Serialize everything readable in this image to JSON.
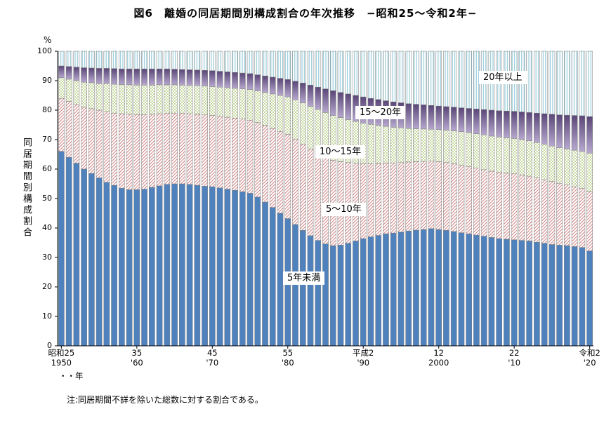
{
  "title": "図6　離婚の同居期間別構成割合の年次推移　−昭和25～令和2年−",
  "note": "注:同居期間不詳を除いた総数に対する割合である。",
  "y_axis": {
    "title": "同居期間別構成割合",
    "unit": "%",
    "min": 0,
    "max": 100,
    "step": 10
  },
  "x_axis": {
    "unit_label": "・・年",
    "ticks": [
      {
        "index": 0,
        "era": "昭和25",
        "west": "1950"
      },
      {
        "index": 10,
        "era": "35",
        "west": "'60"
      },
      {
        "index": 20,
        "era": "45",
        "west": "'70"
      },
      {
        "index": 30,
        "era": "55",
        "west": "'80"
      },
      {
        "index": 40,
        "era": "平成2",
        "west": "'90"
      },
      {
        "index": 50,
        "era": "12",
        "west": "2000"
      },
      {
        "index": 60,
        "era": "22",
        "west": "'10"
      },
      {
        "index": 70,
        "era": "令和2",
        "west": "'20"
      }
    ]
  },
  "chart_data": {
    "type": "bar",
    "stacked": true,
    "title": "離婚の同居期間別構成割合の年次推移",
    "ylabel": "同居期間別構成割合",
    "ylim": [
      0,
      100
    ],
    "legend": "inline-labels",
    "years": [
      1950,
      1951,
      1952,
      1953,
      1954,
      1955,
      1956,
      1957,
      1958,
      1959,
      1960,
      1961,
      1962,
      1963,
      1964,
      1965,
      1966,
      1967,
      1968,
      1969,
      1970,
      1971,
      1972,
      1973,
      1974,
      1975,
      1976,
      1977,
      1978,
      1979,
      1980,
      1981,
      1982,
      1983,
      1984,
      1985,
      1986,
      1987,
      1988,
      1989,
      1990,
      1991,
      1992,
      1993,
      1994,
      1995,
      1996,
      1997,
      1998,
      1999,
      2000,
      2001,
      2002,
      2003,
      2004,
      2005,
      2006,
      2007,
      2008,
      2009,
      2010,
      2011,
      2012,
      2013,
      2014,
      2015,
      2016,
      2017,
      2018,
      2019,
      2020
    ],
    "series": [
      {
        "name": "5年未満",
        "pattern": "solid",
        "color": "#4f81bd",
        "values": [
          66,
          64,
          62,
          60,
          58.5,
          57,
          55.5,
          54.5,
          53.5,
          53,
          53,
          53.2,
          53.8,
          54.3,
          54.8,
          55,
          55,
          54.8,
          54.5,
          54.2,
          54,
          53.6,
          53.2,
          52.8,
          52.3,
          51.8,
          50.5,
          48.8,
          47,
          45,
          43.2,
          41.2,
          39.2,
          37.4,
          35.8,
          34.6,
          34,
          34.2,
          34.8,
          35.6,
          36.4,
          37,
          37.5,
          38,
          38.3,
          38.6,
          39,
          39.3,
          39.5,
          39.8,
          39.5,
          39.2,
          38.8,
          38.4,
          38,
          37.6,
          37.2,
          36.8,
          36.4,
          36.2,
          36,
          35.8,
          35.6,
          35.2,
          34.8,
          34.4,
          34.2,
          34,
          33.7,
          33.4,
          32.2
        ]
      },
      {
        "name": "5～10年",
        "pattern": "diag",
        "color": "#cf8585",
        "values": [
          18,
          19,
          20,
          21,
          22,
          23,
          24,
          24.5,
          25.3,
          25.6,
          25.5,
          25.3,
          24.8,
          24.5,
          24.2,
          24,
          24,
          24,
          24.1,
          24.2,
          24.2,
          24.3,
          24.4,
          24.5,
          24.7,
          24.8,
          25.3,
          26,
          26.8,
          27.8,
          28.6,
          29,
          29.3,
          29.4,
          29.5,
          29.4,
          29,
          28.3,
          27.4,
          26.4,
          25.4,
          24.8,
          24.4,
          24,
          23.8,
          23.6,
          23.4,
          23.2,
          23.1,
          22.9,
          23,
          23,
          23,
          22.9,
          22.8,
          22.7,
          22.6,
          22.5,
          22.5,
          22.4,
          22.4,
          22.2,
          22,
          21.8,
          21.6,
          21.4,
          21,
          20.6,
          20.3,
          20,
          20.2
        ]
      },
      {
        "name": "10～15年",
        "pattern": "dots",
        "color": "#9bbb59",
        "values": [
          7,
          7.5,
          8,
          8.5,
          8.8,
          9,
          9.5,
          9.8,
          9.9,
          10,
          10,
          10,
          9.9,
          9.8,
          9.6,
          9.6,
          9.5,
          9.6,
          9.7,
          9.8,
          9.8,
          9.9,
          10,
          10.1,
          10.2,
          10.4,
          10.7,
          11.2,
          11.7,
          12.2,
          12.7,
          13.3,
          14,
          14.5,
          14.9,
          15.2,
          15.2,
          15,
          14.6,
          14.2,
          13.8,
          13.4,
          12.9,
          12.5,
          12.1,
          11.8,
          11.4,
          11.2,
          11,
          10.8,
          10.9,
          11,
          11.2,
          11.4,
          11.6,
          11.7,
          11.8,
          11.9,
          12,
          12,
          12,
          12,
          12,
          12,
          12,
          12,
          12,
          12.2,
          12.4,
          12.6,
          13
        ]
      },
      {
        "name": "15～20年",
        "pattern": "grad",
        "color": "#5a4678",
        "color2": "#b7a8cf",
        "values": [
          4,
          4.3,
          4.6,
          4.9,
          5,
          5.2,
          5.2,
          5.3,
          5.3,
          5.4,
          5.5,
          5.5,
          5.5,
          5.4,
          5.4,
          5.3,
          5.3,
          5.3,
          5.3,
          5.3,
          5.4,
          5.4,
          5.4,
          5.4,
          5.4,
          5.4,
          5.5,
          5.6,
          5.7,
          5.8,
          5.9,
          6.3,
          6.7,
          7.2,
          7.6,
          8,
          8.4,
          8.5,
          8.7,
          8.8,
          8.9,
          8.8,
          8.8,
          8.7,
          8.6,
          8.5,
          8.4,
          8.3,
          8.2,
          8.1,
          8,
          8,
          8,
          8.1,
          8.2,
          8.4,
          8.6,
          8.8,
          8.9,
          9.1,
          9.2,
          9.4,
          9.6,
          10,
          10.4,
          10.8,
          11.2,
          11.5,
          11.8,
          12.1,
          12.4
        ]
      },
      {
        "name": "20年以上",
        "pattern": "vlines",
        "color": "#8ec6d7",
        "values": [
          5,
          5.2,
          5.4,
          5.6,
          5.7,
          5.8,
          5.8,
          5.9,
          6,
          6,
          6,
          6,
          6,
          6,
          6,
          6.1,
          6.2,
          6.3,
          6.4,
          6.5,
          6.6,
          6.8,
          7,
          7.2,
          7.4,
          7.6,
          8,
          8.4,
          8.8,
          9.2,
          9.6,
          10.2,
          10.8,
          11.5,
          12.2,
          12.8,
          13.4,
          14,
          14.5,
          15,
          15.5,
          16,
          16.4,
          16.8,
          17.2,
          17.5,
          17.8,
          18,
          18.2,
          18.4,
          18.6,
          18.8,
          19,
          19.2,
          19.4,
          19.6,
          19.8,
          20,
          20.2,
          20.3,
          20.4,
          20.6,
          20.8,
          21,
          21.2,
          21.4,
          21.6,
          21.7,
          21.8,
          21.9,
          22.2
        ]
      }
    ]
  }
}
